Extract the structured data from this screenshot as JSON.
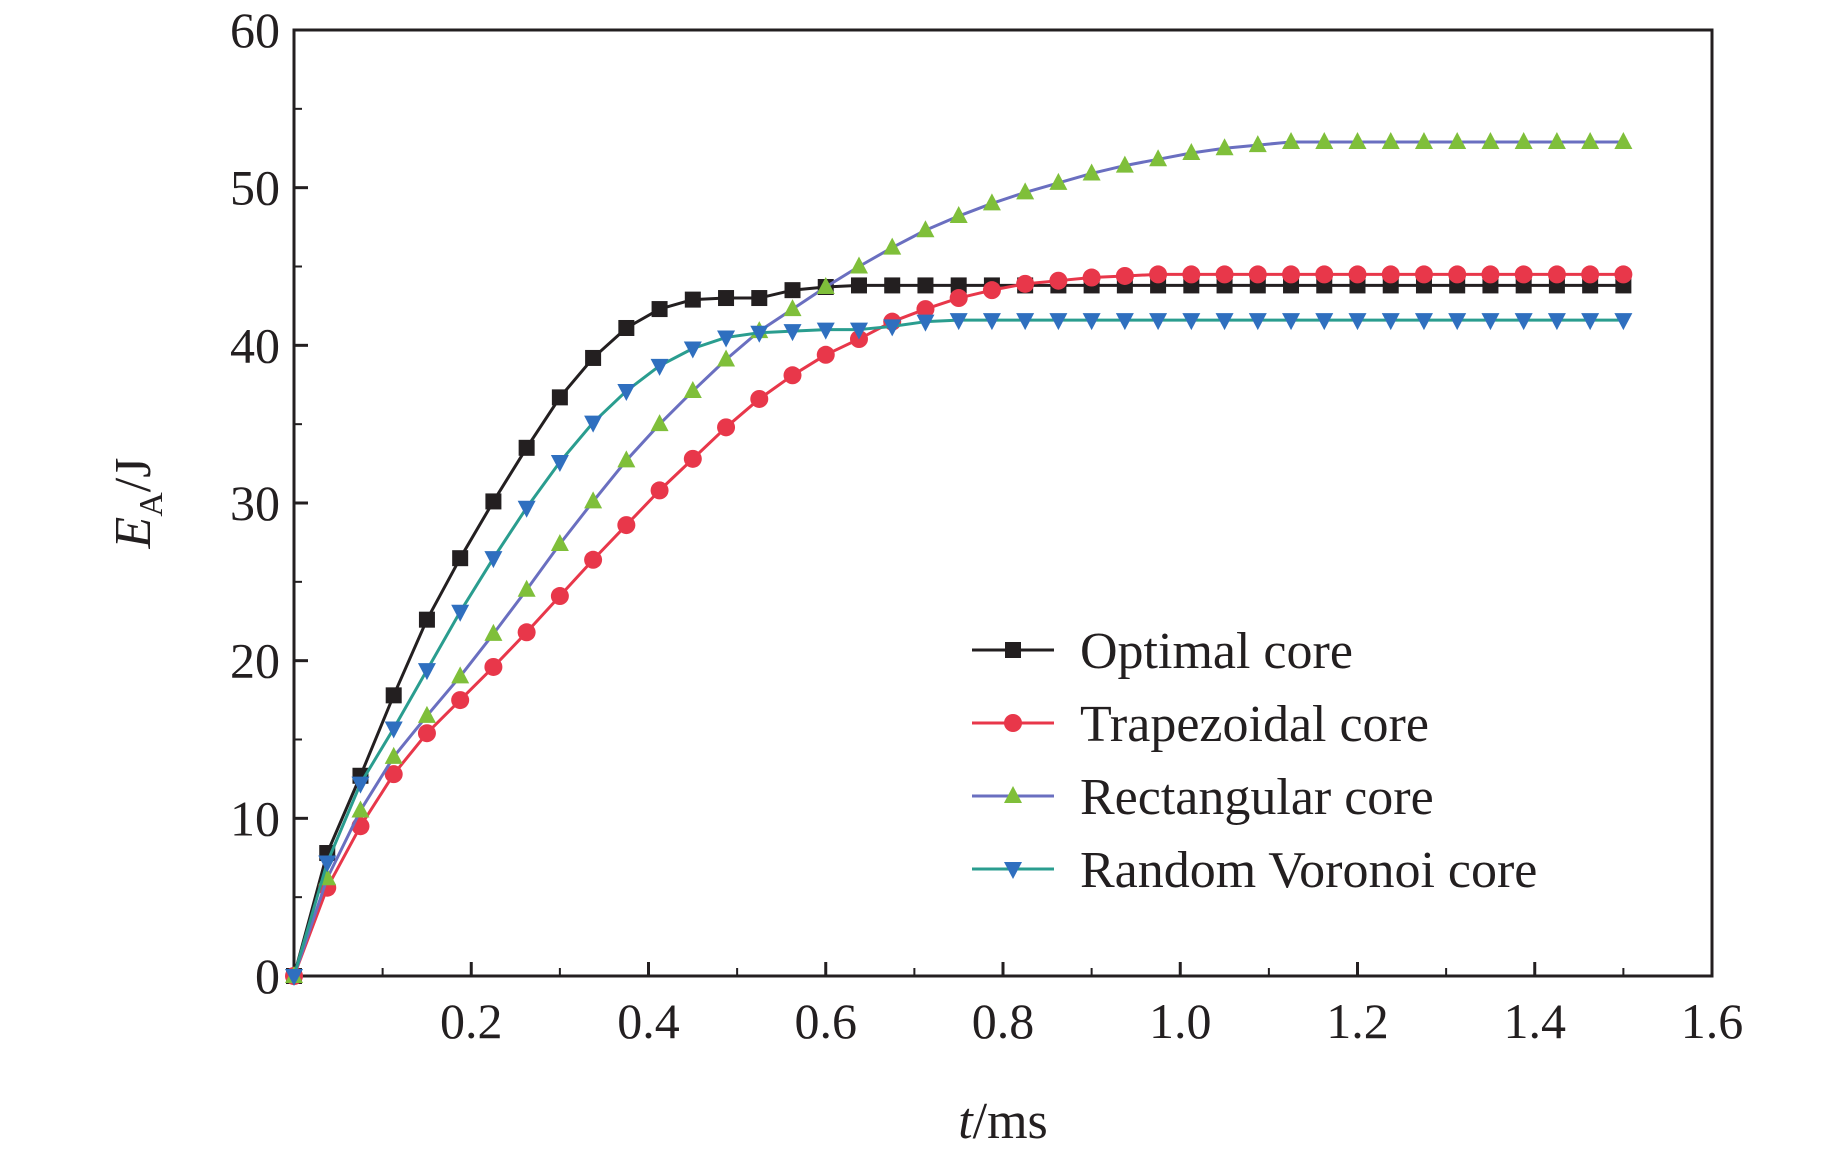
{
  "chart_data": {
    "type": "line",
    "xlabel": {
      "italic": "t",
      "unit": "/ms"
    },
    "ylabel": {
      "italic": "E",
      "subscript": "A",
      "unit": "/J"
    },
    "xlim": [
      0,
      1.6
    ],
    "ylim": [
      0,
      60
    ],
    "xticks": [
      0.2,
      0.4,
      0.6,
      0.8,
      1.0,
      1.2,
      1.4,
      1.6
    ],
    "xtick_labels": [
      "0.2",
      "0.4",
      "0.6",
      "0.8",
      "1.0",
      "1.2",
      "1.4",
      "1.6"
    ],
    "yticks": [
      0,
      10,
      20,
      30,
      40,
      50,
      60
    ],
    "ytick_labels": [
      "0",
      "10",
      "20",
      "30",
      "40",
      "50",
      "60"
    ],
    "grid": false,
    "legend_position": "bottom-right",
    "x": [
      0,
      0.0375,
      0.075,
      0.1125,
      0.15,
      0.1875,
      0.225,
      0.2625,
      0.3,
      0.3375,
      0.375,
      0.4125,
      0.45,
      0.4875,
      0.525,
      0.5625,
      0.6,
      0.6375,
      0.675,
      0.7125,
      0.75,
      0.7875,
      0.825,
      0.8625,
      0.9,
      0.9375,
      0.975,
      1.0125,
      1.05,
      1.0875,
      1.125,
      1.1625,
      1.2,
      1.2375,
      1.275,
      1.3125,
      1.35,
      1.3875,
      1.425,
      1.4625,
      1.5
    ],
    "series": [
      {
        "name": "Optimal core",
        "color": "#231f20",
        "marker": "square",
        "values": [
          0,
          7.8,
          12.7,
          17.8,
          22.6,
          26.5,
          30.1,
          33.5,
          36.7,
          39.2,
          41.1,
          42.3,
          42.9,
          43.0,
          43.0,
          43.5,
          43.7,
          43.8,
          43.8,
          43.8,
          43.8,
          43.8,
          43.8,
          43.8,
          43.8,
          43.8,
          43.8,
          43.8,
          43.8,
          43.8,
          43.8,
          43.8,
          43.8,
          43.8,
          43.8,
          43.8,
          43.8,
          43.8,
          43.8,
          43.8,
          43.8
        ]
      },
      {
        "name": "Trapezoidal core",
        "color": "#e8374a",
        "marker": "circle",
        "values": [
          0,
          5.6,
          9.5,
          12.8,
          15.4,
          17.5,
          19.6,
          21.8,
          24.1,
          26.4,
          28.6,
          30.8,
          32.8,
          34.8,
          36.6,
          38.1,
          39.4,
          40.4,
          41.5,
          42.3,
          43.0,
          43.5,
          43.9,
          44.1,
          44.3,
          44.4,
          44.5,
          44.5,
          44.5,
          44.5,
          44.5,
          44.5,
          44.5,
          44.5,
          44.5,
          44.5,
          44.5,
          44.5,
          44.5,
          44.5,
          44.5
        ]
      },
      {
        "name": "Rectangular core",
        "color": "#7fbf3a",
        "line_color": "#6a6fc0",
        "marker": "triangle-up",
        "values": [
          0,
          6.2,
          10.5,
          13.9,
          16.5,
          19.0,
          21.7,
          24.5,
          27.4,
          30.1,
          32.7,
          35.0,
          37.1,
          39.1,
          40.9,
          42.3,
          43.7,
          45.0,
          46.2,
          47.3,
          48.2,
          49.0,
          49.7,
          50.3,
          50.9,
          51.4,
          51.8,
          52.2,
          52.5,
          52.7,
          52.9,
          52.9,
          52.9,
          52.9,
          52.9,
          52.9,
          52.9,
          52.9,
          52.9,
          52.9,
          52.9
        ]
      },
      {
        "name": "Random Voronoi core",
        "color": "#2f6fbf",
        "line_color": "#2a9d8f",
        "marker": "triangle-down",
        "values": [
          0,
          7.2,
          12.2,
          15.7,
          19.4,
          23.1,
          26.5,
          29.7,
          32.6,
          35.1,
          37.1,
          38.7,
          39.8,
          40.5,
          40.8,
          40.9,
          41.0,
          41.0,
          41.2,
          41.5,
          41.6,
          41.6,
          41.6,
          41.6,
          41.6,
          41.6,
          41.6,
          41.6,
          41.6,
          41.6,
          41.6,
          41.6,
          41.6,
          41.6,
          41.6,
          41.6,
          41.6,
          41.6,
          41.6,
          41.6,
          41.6
        ]
      }
    ]
  }
}
